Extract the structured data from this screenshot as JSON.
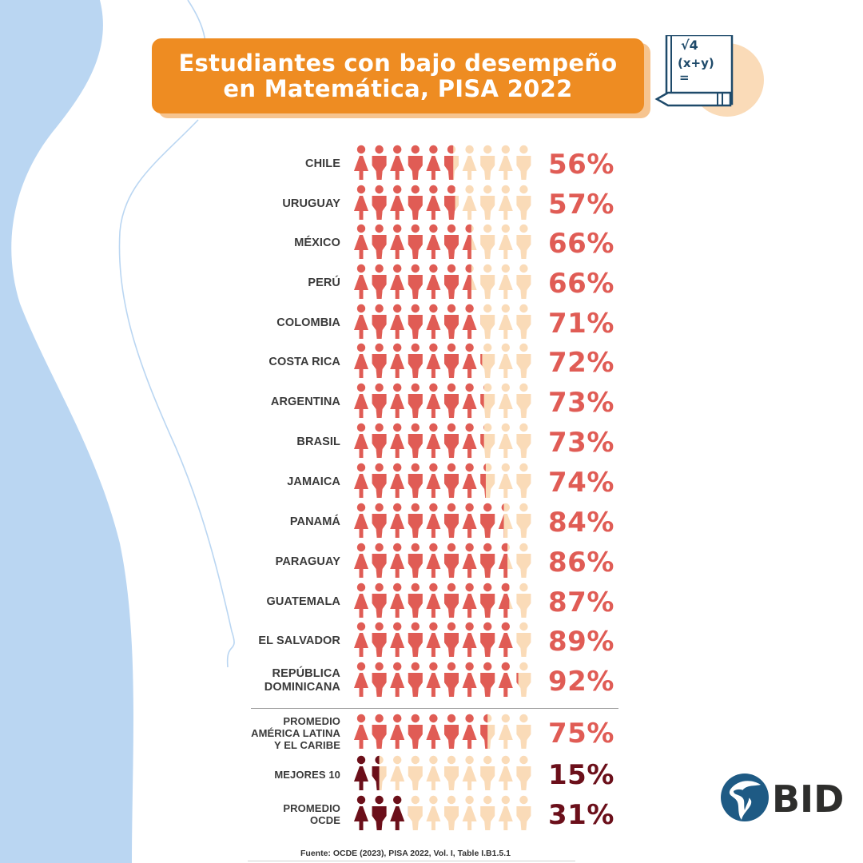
{
  "title": {
    "line1": "Estudiantes con bajo desempeño",
    "line2": "en Matemática, PISA 2022"
  },
  "colors": {
    "accent": "#ee8c22",
    "filled": "#e05c55",
    "filled_dark": "#6b0f1a",
    "empty": "#fadbb8",
    "background_wave": "#bad6f2",
    "bid_blue": "#1e5a84"
  },
  "decor": {
    "math_icon_text1": "√4",
    "math_icon_text2": "(x+y)",
    "math_icon_text3": "="
  },
  "chart_data": {
    "type": "bar",
    "subtype": "pictogram",
    "title": "Estudiantes con bajo desempeño en Matemática, PISA 2022",
    "unit": "%",
    "icons_per_row": 10,
    "categories": [
      "CHILE",
      "URUGUAY",
      "MÉXICO",
      "PERÚ",
      "COLOMBIA",
      "COSTA RICA",
      "ARGENTINA",
      "BRASIL",
      "JAMAICA",
      "PANAMÁ",
      "PARAGUAY",
      "GUATEMALA",
      "EL SALVADOR",
      "REPÚBLICA DOMINICANA",
      "PROMEDIO AMÉRICA LATINA Y EL CARIBE",
      "MEJORES 10",
      "PROMEDIO OCDE"
    ],
    "rows": [
      {
        "label_lines": [
          "CHILE"
        ],
        "value": 56,
        "label": "56%",
        "group": "country"
      },
      {
        "label_lines": [
          "URUGUAY"
        ],
        "value": 57,
        "label": "57%",
        "group": "country"
      },
      {
        "label_lines": [
          "MÉXICO"
        ],
        "value": 66,
        "label": "66%",
        "group": "country"
      },
      {
        "label_lines": [
          "PERÚ"
        ],
        "value": 66,
        "label": "66%",
        "group": "country"
      },
      {
        "label_lines": [
          "COLOMBIA"
        ],
        "value": 71,
        "label": "71%",
        "group": "country"
      },
      {
        "label_lines": [
          "COSTA RICA"
        ],
        "value": 72,
        "label": "72%",
        "group": "country"
      },
      {
        "label_lines": [
          "ARGENTINA"
        ],
        "value": 73,
        "label": "73%",
        "group": "country"
      },
      {
        "label_lines": [
          "BRASIL"
        ],
        "value": 73,
        "label": "73%",
        "group": "country"
      },
      {
        "label_lines": [
          "JAMAICA"
        ],
        "value": 74,
        "label": "74%",
        "group": "country"
      },
      {
        "label_lines": [
          "PANAMÁ"
        ],
        "value": 84,
        "label": "84%",
        "group": "country"
      },
      {
        "label_lines": [
          "PARAGUAY"
        ],
        "value": 86,
        "label": "86%",
        "group": "country"
      },
      {
        "label_lines": [
          "GUATEMALA"
        ],
        "value": 87,
        "label": "87%",
        "group": "country"
      },
      {
        "label_lines": [
          "EL SALVADOR"
        ],
        "value": 89,
        "label": "89%",
        "group": "country"
      },
      {
        "label_lines": [
          "REPÚBLICA",
          "DOMINICANA"
        ],
        "value": 92,
        "label": "92%",
        "group": "country"
      },
      {
        "label_lines": [
          "PROMEDIO",
          "AMÉRICA LATINA",
          "Y EL CARIBE"
        ],
        "value": 75,
        "label": "75%",
        "group": "average"
      },
      {
        "label_lines": [
          "MEJORES 10"
        ],
        "value": 15,
        "label": "15%",
        "group": "benchmark"
      },
      {
        "label_lines": [
          "PROMEDIO",
          "OCDE"
        ],
        "value": 31,
        "label": "31%",
        "group": "benchmark"
      }
    ],
    "source": "Fuente: OCDE (2023), PISA 2022, Vol. I, Table I.B1.5.1"
  },
  "logo": {
    "text": "BID"
  }
}
